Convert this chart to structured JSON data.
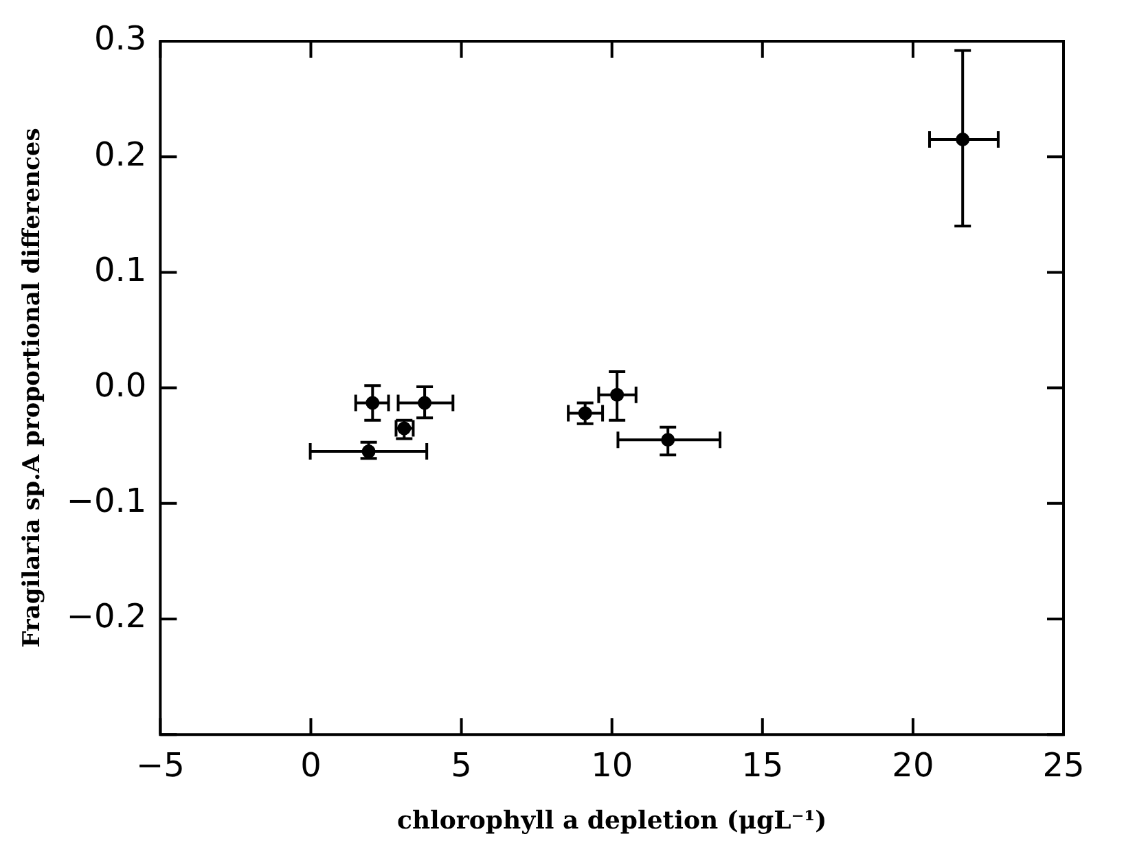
{
  "chart_data": {
    "type": "scatter",
    "xlabel": "chlorophyll a depletion (μgL⁻¹)",
    "ylabel": "Fragilaria sp.A proportional differences",
    "x": [
      2.05,
      3.78,
      3.1,
      1.92,
      9.11,
      10.17,
      11.86,
      21.65
    ],
    "values": [
      -0.013,
      -0.013,
      -0.035,
      -0.055,
      -0.022,
      -0.006,
      -0.045,
      0.215
    ],
    "errors": [
      [
        -0.028,
        0.002
      ],
      [
        -0.026,
        0.001
      ],
      [
        -0.044,
        -0.028
      ],
      [
        -0.061,
        -0.047
      ],
      [
        -0.031,
        -0.013
      ],
      [
        -0.028,
        0.014
      ],
      [
        -0.058,
        -0.034
      ],
      [
        0.14,
        0.292
      ]
    ],
    "xerrors": [
      [
        1.49,
        2.58
      ],
      [
        2.9,
        4.72
      ],
      [
        2.83,
        3.4
      ],
      [
        -0.02,
        3.85
      ],
      [
        8.55,
        9.69
      ],
      [
        9.56,
        10.8
      ],
      [
        10.2,
        13.59
      ],
      [
        20.55,
        22.83
      ]
    ],
    "color": "#000000",
    "marker": "circle",
    "xlim": [
      -5,
      25
    ],
    "xticks": [
      -5,
      0,
      5,
      10,
      15,
      20,
      25
    ],
    "ylim": [
      -0.3,
      0.3
    ],
    "yticks": [
      {
        "value": -0.3,
        "label": null
      },
      {
        "value": -0.2,
        "label": "−0.2"
      },
      {
        "value": -0.1,
        "label": "−0.1"
      },
      {
        "value": 0,
        "label": "0.0"
      },
      {
        "value": 0.1,
        "label": "0.1"
      },
      {
        "value": 0.2,
        "label": "0.2"
      },
      {
        "value": 0.3,
        "label": "0.3"
      }
    ]
  }
}
